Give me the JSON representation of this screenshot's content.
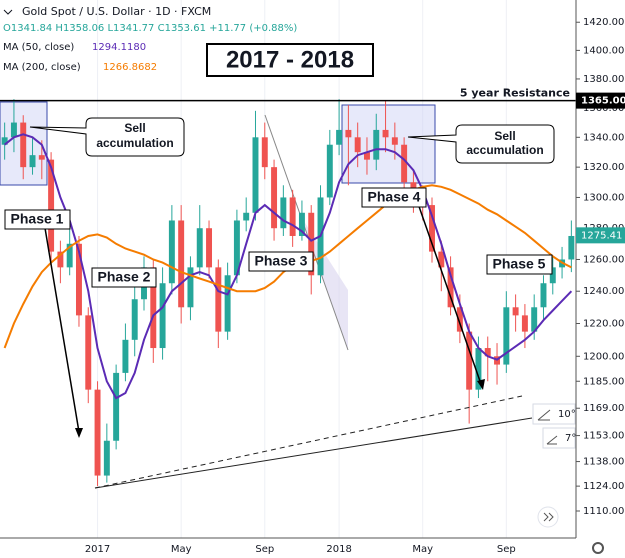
{
  "chart_data": {
    "type": "candlestick",
    "symbol": "Gold Spot / U.S. Dollar · 1D · FXCM",
    "ohlc_header": [
      "O1341.84",
      "H1358.06",
      "L1341.77",
      "C1353.61",
      "+11.77 (+0.88%)"
    ],
    "title": "2017 - 2018",
    "categories": [
      null,
      null,
      null,
      null,
      null,
      null,
      null,
      null,
      null,
      null,
      "2017",
      null,
      null,
      null,
      null,
      null,
      null,
      null,
      null,
      "May",
      null,
      null,
      null,
      null,
      null,
      null,
      null,
      null,
      "Sep",
      null,
      null,
      null,
      null,
      null,
      null,
      null,
      "2018",
      null,
      null,
      null,
      null,
      null,
      null,
      null,
      null,
      "May",
      null,
      null,
      null,
      null,
      null,
      null,
      null,
      null,
      "Sep",
      null,
      null,
      null,
      null,
      null,
      null,
      null
    ],
    "open": [
      1335,
      1340,
      1350,
      1320,
      1328,
      1325,
      1265,
      1255,
      1270,
      1225,
      1180,
      1130,
      1150,
      1190,
      1210,
      1235,
      1255,
      1205,
      1245,
      1285,
      1230,
      1255,
      1280,
      1255,
      1215,
      1250,
      1285,
      1290,
      1340,
      1320,
      1280,
      1300,
      1275,
      1290,
      1250,
      1300,
      1335,
      1345,
      1340,
      1330,
      1325,
      1345,
      1340,
      1335,
      1310,
      1300,
      1295,
      1265,
      1255,
      1230,
      1215,
      1180,
      1205,
      1200,
      1195,
      1230,
      1225,
      1215,
      1230,
      1245,
      1255,
      1260
    ],
    "high": [
      1350,
      1366,
      1355,
      1340,
      1338,
      1330,
      1272,
      1280,
      1275,
      1230,
      1185,
      1160,
      1195,
      1220,
      1245,
      1262,
      1260,
      1255,
      1295,
      1295,
      1262,
      1295,
      1285,
      1260,
      1258,
      1292,
      1300,
      1358,
      1350,
      1325,
      1308,
      1305,
      1298,
      1295,
      1308,
      1345,
      1366,
      1362,
      1350,
      1340,
      1356,
      1365,
      1350,
      1340,
      1318,
      1308,
      1300,
      1272,
      1262,
      1238,
      1220,
      1212,
      1212,
      1208,
      1240,
      1238,
      1232,
      1238,
      1250,
      1262,
      1268,
      1285
    ],
    "low": [
      1325,
      1330,
      1312,
      1315,
      1312,
      1258,
      1245,
      1250,
      1218,
      1172,
      1124,
      1126,
      1145,
      1185,
      1200,
      1228,
      1196,
      1198,
      1238,
      1220,
      1222,
      1250,
      1248,
      1205,
      1210,
      1245,
      1278,
      1285,
      1312,
      1272,
      1275,
      1268,
      1272,
      1238,
      1245,
      1295,
      1328,
      1308,
      1320,
      1315,
      1318,
      1330,
      1325,
      1300,
      1290,
      1285,
      1258,
      1240,
      1225,
      1208,
      1160,
      1175,
      1185,
      1183,
      1190,
      1215,
      1205,
      1210,
      1222,
      1238,
      1248,
      1252
    ],
    "close": [
      1340,
      1350,
      1320,
      1328,
      1325,
      1265,
      1255,
      1270,
      1225,
      1180,
      1130,
      1150,
      1190,
      1210,
      1235,
      1255,
      1205,
      1245,
      1285,
      1230,
      1255,
      1280,
      1255,
      1215,
      1250,
      1285,
      1290,
      1340,
      1320,
      1280,
      1300,
      1275,
      1290,
      1250,
      1300,
      1335,
      1345,
      1340,
      1330,
      1325,
      1345,
      1340,
      1335,
      1310,
      1300,
      1295,
      1265,
      1255,
      1230,
      1215,
      1180,
      1205,
      1200,
      1195,
      1230,
      1225,
      1215,
      1230,
      1245,
      1255,
      1260,
      1275
    ],
    "up_color": "#26a69a",
    "down_color": "#ef5350",
    "series": [
      {
        "name": "MA (50, close)",
        "legend_value": "1294.1180",
        "color": "#5b2bb5",
        "values": [
          1335,
          1340,
          1342,
          1340,
          1335,
          1320,
          1300,
          1285,
          1265,
          1240,
          1205,
          1185,
          1175,
          1178,
          1190,
          1210,
          1225,
          1230,
          1240,
          1245,
          1250,
          1252,
          1250,
          1240,
          1238,
          1250,
          1270,
          1290,
          1295,
          1290,
          1285,
          1282,
          1278,
          1272,
          1275,
          1290,
          1310,
          1322,
          1328,
          1330,
          1332,
          1332,
          1330,
          1325,
          1318,
          1305,
          1288,
          1270,
          1250,
          1232,
          1215,
          1205,
          1200,
          1198,
          1202,
          1206,
          1210,
          1215,
          1222,
          1228,
          1234,
          1240
        ]
      },
      {
        "name": "MA (200, close)",
        "legend_value": "1266.8682",
        "color": "#f57c00",
        "values": [
          1205,
          1220,
          1232,
          1243,
          1252,
          1258,
          1263,
          1268,
          1272,
          1275,
          1276,
          1274,
          1270,
          1267,
          1265,
          1263,
          1260,
          1258,
          1255,
          1252,
          1250,
          1248,
          1246,
          1244,
          1242,
          1240,
          1240,
          1240,
          1242,
          1246,
          1252,
          1256,
          1258,
          1259,
          1261,
          1265,
          1270,
          1275,
          1280,
          1285,
          1290,
          1295,
          1299,
          1302,
          1305,
          1307,
          1308,
          1307,
          1305,
          1302,
          1299,
          1296,
          1292,
          1289,
          1285,
          1281,
          1277,
          1272,
          1267,
          1262,
          1258,
          1255
        ]
      }
    ],
    "log_scale": true,
    "grid": true,
    "ylim": [
      1095,
      1436
    ],
    "yticks": [
      {
        "value": 1110,
        "label": "1110.00"
      },
      {
        "value": 1124,
        "label": "1124.00"
      },
      {
        "value": 1138,
        "label": "1138.00"
      },
      {
        "value": 1153,
        "label": "1153.00"
      },
      {
        "value": 1169,
        "label": "1169.00"
      },
      {
        "value": 1185,
        "label": "1185.00"
      },
      {
        "value": 1200,
        "label": "1200.00"
      },
      {
        "value": 1220,
        "label": "1220.00"
      },
      {
        "value": 1240,
        "label": "1240.00"
      },
      {
        "value": 1260,
        "label": "1260.00"
      },
      {
        "value": 1280,
        "label": "1280.00"
      },
      {
        "value": 1300,
        "label": "1300.00"
      },
      {
        "value": 1320,
        "label": "1320.00"
      },
      {
        "value": 1340,
        "label": "1340.00"
      },
      {
        "value": 1360,
        "label": "1360.00"
      },
      {
        "value": 1380,
        "label": "1380.00"
      },
      {
        "value": 1400,
        "label": "1400.00"
      },
      {
        "value": 1420,
        "label": "1420.00"
      }
    ],
    "resistance": {
      "value": 1365,
      "label": "1365.00",
      "text": "5 year Resistance"
    },
    "last_price": {
      "value": 1275.41,
      "label": "1275.41"
    },
    "annotations": {
      "phases": [
        "Phase 1",
        "Phase 2",
        "Phase 3",
        "Phase 4",
        "Phase 5"
      ],
      "sell_callouts": [
        [
          "Sell",
          "accumulation"
        ],
        [
          "Sell",
          "accumulation"
        ]
      ],
      "angles": [
        "10°",
        "7°"
      ]
    }
  }
}
